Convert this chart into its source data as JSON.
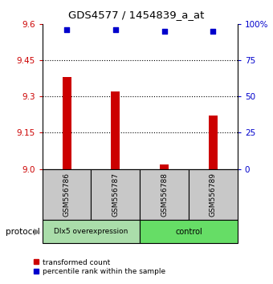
{
  "title": "GDS4577 / 1454839_a_at",
  "samples": [
    "GSM556786",
    "GSM556787",
    "GSM556788",
    "GSM556789"
  ],
  "bar_values": [
    9.38,
    9.32,
    9.02,
    9.22
  ],
  "percentile_values": [
    96,
    96,
    95,
    95
  ],
  "groups": [
    {
      "label": "Dlx5 overexpression",
      "samples": [
        0,
        1
      ]
    },
    {
      "label": "control",
      "samples": [
        2,
        3
      ]
    }
  ],
  "group_bg_colors": [
    "#aaddaa",
    "#66dd66"
  ],
  "bar_color": "#cc0000",
  "percentile_color": "#0000cc",
  "left_ylim": [
    9.0,
    9.6
  ],
  "left_yticks": [
    9.0,
    9.15,
    9.3,
    9.45,
    9.6
  ],
  "right_ylim": [
    0,
    100
  ],
  "right_yticks": [
    0,
    25,
    50,
    75,
    100
  ],
  "right_yticklabels": [
    "0",
    "25",
    "50",
    "75",
    "100%"
  ],
  "grid_values": [
    9.15,
    9.3,
    9.45
  ],
  "sample_box_color": "#c8c8c8",
  "protocol_label": "protocol",
  "background_color": "#ffffff"
}
